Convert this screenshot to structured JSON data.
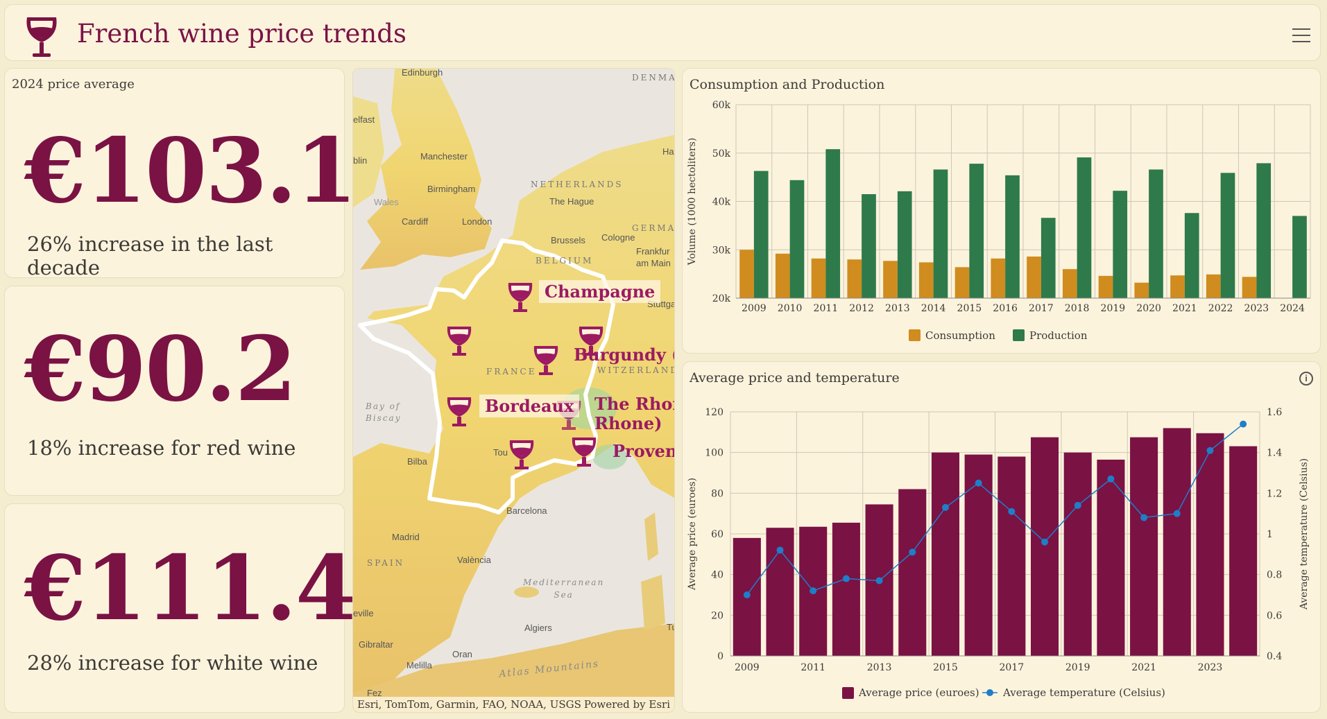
{
  "header": {
    "title": "French wine price trends",
    "logo_icon": "wine-glass-icon",
    "menu_icon": "hamburger-menu-icon"
  },
  "kpis": [
    {
      "label": "2024 price average",
      "value": "€103.1",
      "caption": "26% increase in the last decade"
    },
    {
      "label": "",
      "value": "€90.2",
      "caption": "18% increase for red wine"
    },
    {
      "label": "",
      "value": "€111.4",
      "caption": "28% increase for white wine"
    }
  ],
  "map": {
    "regions": [
      "Champagne",
      "Burgundy (B",
      "Bordeaux",
      "The Rhon\nRhone)",
      "Provenc"
    ],
    "place_labels": [
      "Edinburgh",
      "elfast",
      "blin",
      "Manchester",
      "Birmingham",
      "Wales",
      "Cardiff",
      "London",
      "The Hague",
      "Brussels",
      "Cologne",
      "Frankfur\nam Main",
      "Stuttga",
      "Bilba",
      "Tou",
      "Barcelona",
      "Madrid",
      "València",
      "eville",
      "Algiers",
      "Gibraltar",
      "Oran",
      "Melilla",
      "Fez",
      "Tu",
      "Ha"
    ],
    "country_labels": [
      "DENMA",
      "NETHERLANDS",
      "GERMA",
      "BELGIUM",
      "FRANCE",
      "WITZERLAND",
      "SPAIN"
    ],
    "sea_labels": [
      "Bay of\nBiscay",
      "Mediterranean\nSea",
      "Atlas Mountains"
    ],
    "attribution_left": "Esri, TomTom, Garmin, FAO, NOAA, USGS",
    "attribution_right": "Powered by Esri"
  },
  "colors": {
    "wine": "#7a1244",
    "consumption": "#d08c1e",
    "production": "#2e7a4a",
    "temperature": "#1f7ec8"
  },
  "chart_data": [
    {
      "type": "bar",
      "title": "Consumption and Production",
      "ylabel": "Volume (1000 hectoliters)",
      "ylim": [
        20000,
        60000
      ],
      "yticks": [
        "20k",
        "30k",
        "40k",
        "50k",
        "60k"
      ],
      "categories": [
        "2009",
        "2010",
        "2011",
        "2012",
        "2013",
        "2014",
        "2015",
        "2016",
        "2017",
        "2018",
        "2019",
        "2020",
        "2021",
        "2022",
        "2023",
        "2024"
      ],
      "series": [
        {
          "name": "Consumption",
          "values": [
            30000,
            29200,
            28200,
            28000,
            27700,
            27400,
            26400,
            28200,
            28600,
            26000,
            24600,
            23200,
            24700,
            24900,
            24400,
            null
          ]
        },
        {
          "name": "Production",
          "values": [
            46300,
            44400,
            50800,
            41500,
            42100,
            46600,
            47800,
            45400,
            36600,
            49100,
            42200,
            46600,
            37600,
            45900,
            47900,
            37000
          ]
        }
      ],
      "legend": "bottom-center",
      "grid": true
    },
    {
      "type": "bar",
      "title": "Average price and temperature",
      "ylabel": "Average price (euroes)",
      "y2label": "Average temperature (Celsius)",
      "ylim": [
        0,
        120
      ],
      "y2lim": [
        0.4,
        1.6
      ],
      "yticks": [
        "0",
        "20",
        "40",
        "60",
        "80",
        "100",
        "120"
      ],
      "y2ticks": [
        "0.4",
        "0.6",
        "0.8",
        "1",
        "1.2",
        "1.4",
        "1.6"
      ],
      "xticks": [
        "2009",
        "2011",
        "2013",
        "2015",
        "2017",
        "2019",
        "2021",
        "2023"
      ],
      "categories": [
        "2009",
        "2010",
        "2011",
        "2012",
        "2013",
        "2014",
        "2015",
        "2016",
        "2017",
        "2018",
        "2019",
        "2020",
        "2021",
        "2022",
        "2023",
        "2024"
      ],
      "series": [
        {
          "name": "Average price (euroes)",
          "values": [
            58,
            63,
            63.5,
            65.5,
            74.5,
            82,
            100,
            99,
            98,
            107.5,
            100,
            96.5,
            107.5,
            112,
            109.5,
            103.1
          ]
        },
        {
          "name": "Average temperature (Celsius)",
          "values": [
            0.7,
            0.92,
            0.72,
            0.78,
            0.77,
            0.91,
            1.13,
            1.25,
            1.11,
            0.96,
            1.14,
            1.27,
            1.08,
            1.1,
            1.41,
            1.54
          ]
        }
      ],
      "legend": "bottom-center",
      "grid": true
    }
  ]
}
